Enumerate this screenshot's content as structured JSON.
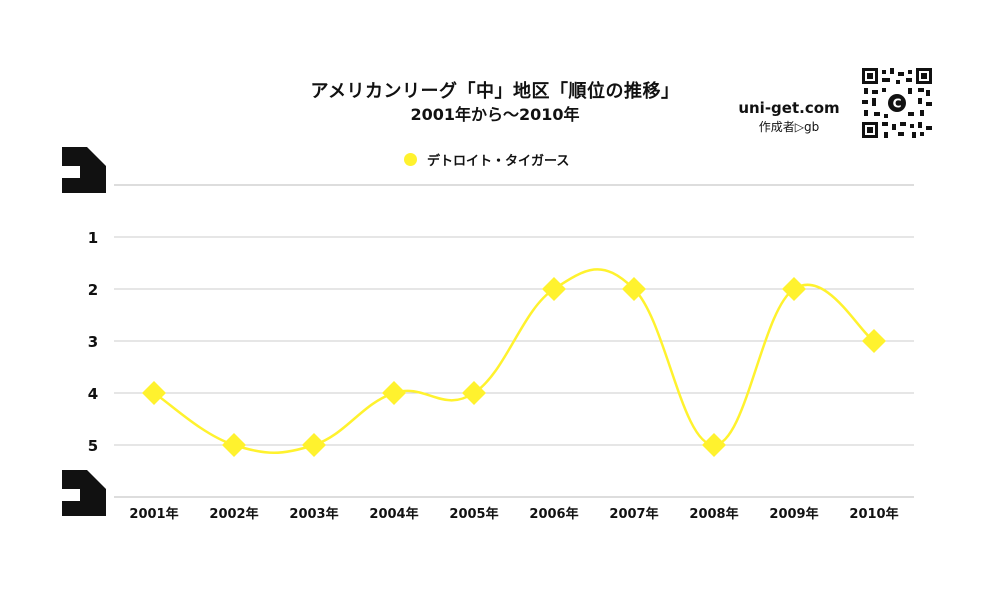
{
  "header": {
    "title": "アメリカンリーグ「中」地区「順位の推移」",
    "subtitle": "2001年から～2010年"
  },
  "brand": {
    "site": "uni-get.com",
    "author": "作成者▷gb"
  },
  "colors": {
    "series": "#fff22e",
    "grid": "#cccccc",
    "text": "#111111"
  },
  "chart_data": {
    "type": "line",
    "categories": [
      "2001年",
      "2002年",
      "2003年",
      "2004年",
      "2005年",
      "2006年",
      "2007年",
      "2008年",
      "2009年",
      "2010年"
    ],
    "series": [
      {
        "name": "デトロイト・タイガース",
        "values": [
          4,
          5,
          5,
          4,
          4,
          2,
          2,
          5,
          2,
          3
        ],
        "marker": "diamond",
        "smooth": true
      }
    ],
    "y_ticks": [
      "1",
      "2",
      "3",
      "4",
      "5"
    ],
    "ylim": [
      0,
      6
    ],
    "y_reversed": true,
    "grid": true,
    "legend_position": "top-center"
  }
}
